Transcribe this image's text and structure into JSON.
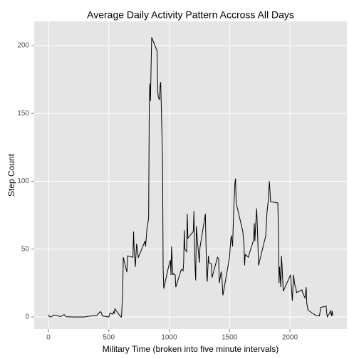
{
  "chart_data": {
    "type": "line",
    "title": "Average Daily Activity Pattern Accross All Days",
    "xlabel": "Military Time (broken into five minute intervals)",
    "ylabel": "Step Count",
    "color": "#000000",
    "grid": true,
    "xlim": [
      -118,
      2472
    ],
    "ylim": [
      -8.9,
      217.8
    ],
    "xticks": [
      0,
      500,
      1000,
      1500,
      2000
    ],
    "yticks": [
      0,
      50,
      100,
      150,
      200
    ],
    "x": [
      0,
      10,
      20,
      30,
      45,
      100,
      130,
      145,
      200,
      230,
      300,
      330,
      400,
      430,
      440,
      445,
      500,
      510,
      530,
      540,
      545,
      550,
      600,
      605,
      615,
      620,
      650,
      655,
      700,
      705,
      710,
      720,
      730,
      745,
      800,
      805,
      815,
      825,
      830,
      835,
      840,
      845,
      850,
      855,
      900,
      905,
      910,
      920,
      925,
      930,
      945,
      950,
      955,
      1000,
      1010,
      1015,
      1020,
      1030,
      1035,
      1050,
      1055,
      1100,
      1105,
      1115,
      1120,
      1125,
      1130,
      1145,
      1150,
      1155,
      1200,
      1205,
      1210,
      1215,
      1220,
      1225,
      1235,
      1250,
      1255,
      1300,
      1310,
      1315,
      1325,
      1330,
      1350,
      1355,
      1400,
      1410,
      1415,
      1430,
      1435,
      1445,
      1500,
      1510,
      1515,
      1525,
      1535,
      1545,
      1550,
      1555,
      1610,
      1620,
      1625,
      1630,
      1645,
      1655,
      1700,
      1705,
      1710,
      1715,
      1725,
      1735,
      1740,
      1800,
      1805,
      1810,
      1820,
      1825,
      1830,
      1840,
      1900,
      1905,
      1910,
      1915,
      1925,
      1930,
      1935,
      1945,
      2005,
      2010,
      2020,
      2030,
      2040,
      2050,
      2055,
      2100,
      2110,
      2125,
      2135,
      2140,
      2150,
      2200,
      2220,
      2230,
      2235,
      2245,
      2255,
      2300,
      2305,
      2310,
      2330,
      2335,
      2340,
      2345,
      2350,
      2355
    ],
    "series": [
      {
        "name": "steps",
        "color": "#000000",
        "values": [
          1.7,
          0.1,
          0.1,
          0.5,
          1.5,
          0.3,
          1.8,
          0.2,
          0,
          0,
          0,
          0.5,
          1.2,
          4,
          3,
          0.8,
          0,
          3,
          2,
          3.8,
          2.5,
          6,
          0,
          0,
          18,
          44,
          33,
          45,
          44,
          63,
          50,
          37,
          54,
          44,
          56,
          52,
          64,
          70,
          73,
          155,
          172,
          159,
          183,
          206,
          196,
          167,
          162,
          160,
          170,
          173,
          116,
          36,
          21,
          39,
          42,
          31,
          52,
          31,
          32,
          31,
          22,
          35,
          35,
          34,
          40,
          64,
          50,
          48,
          76,
          58,
          63,
          78,
          53,
          36,
          27,
          67,
          55,
          40,
          51,
          76,
          32,
          26,
          45,
          40,
          39,
          29,
          44,
          43,
          25,
          33,
          32,
          16,
          44,
          57,
          60,
          52,
          80,
          99,
          102,
          84,
          63,
          52,
          38,
          46,
          45,
          44,
          57,
          69,
          56,
          66,
          80,
          54,
          38,
          60,
          68,
          77,
          85,
          92,
          100,
          85,
          84,
          64,
          25,
          37,
          22,
          45,
          38,
          19,
          31,
          25,
          12,
          31,
          24,
          21,
          18,
          20,
          17,
          14,
          22,
          10,
          5,
          2,
          1,
          1,
          1,
          0.8,
          7,
          8,
          3,
          0.2,
          3,
          4.6,
          3,
          0.6,
          4.5,
          1
        ]
      }
    ]
  }
}
